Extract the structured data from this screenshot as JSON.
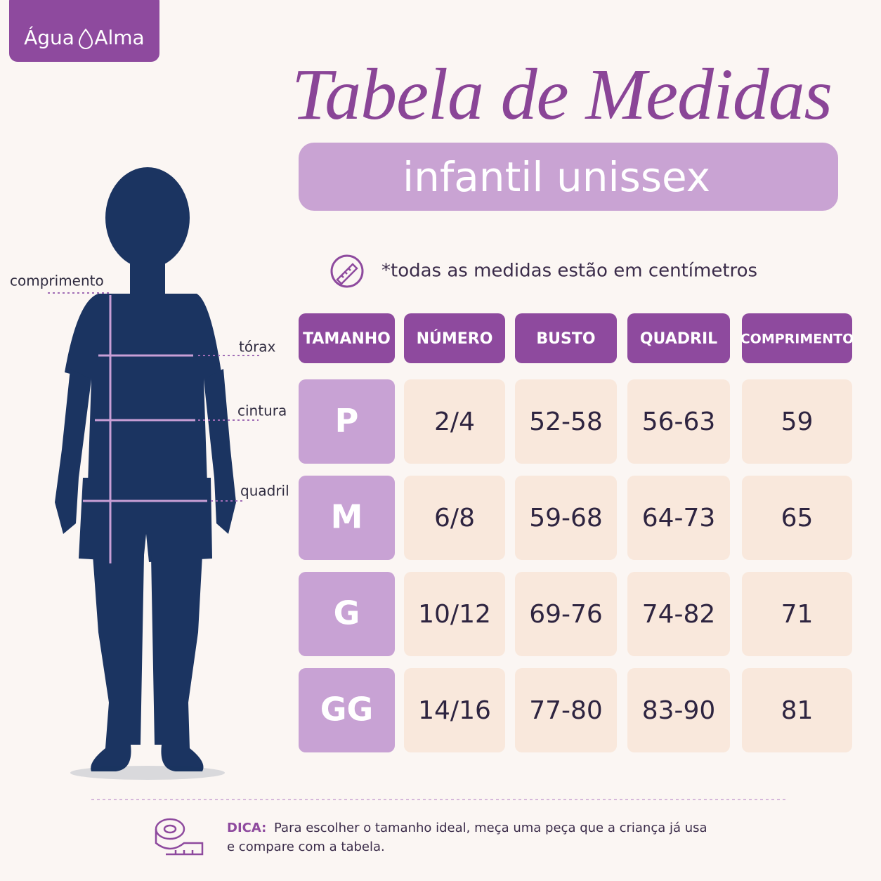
{
  "brand": {
    "left": "Água",
    "right": "Alma"
  },
  "header": {
    "title": "Tabela de Medidas",
    "subtitle": "infantil unissex"
  },
  "note": "*todas as medidas estão em centímetros",
  "figure": {
    "labels": [
      "comprimento",
      "tórax",
      "cintura",
      "quadril"
    ]
  },
  "table": {
    "headers": [
      "TAMANHO",
      "NÚMERO",
      "BUSTO",
      "QUADRIL",
      "COMPRIMENTO"
    ],
    "rows": [
      [
        "P",
        "2/4",
        "52-58",
        "56-63",
        "59"
      ],
      [
        "M",
        "6/8",
        "59-68",
        "64-73",
        "65"
      ],
      [
        "G",
        "10/12",
        "69-76",
        "74-82",
        "71"
      ],
      [
        "GG",
        "14/16",
        "77-80",
        "83-90",
        "81"
      ]
    ]
  },
  "tip": {
    "label": "DICA:",
    "lines": [
      "Para escolher o tamanho ideal, meça uma peça que a criança já usa",
      "e compare com a tabela."
    ]
  }
}
